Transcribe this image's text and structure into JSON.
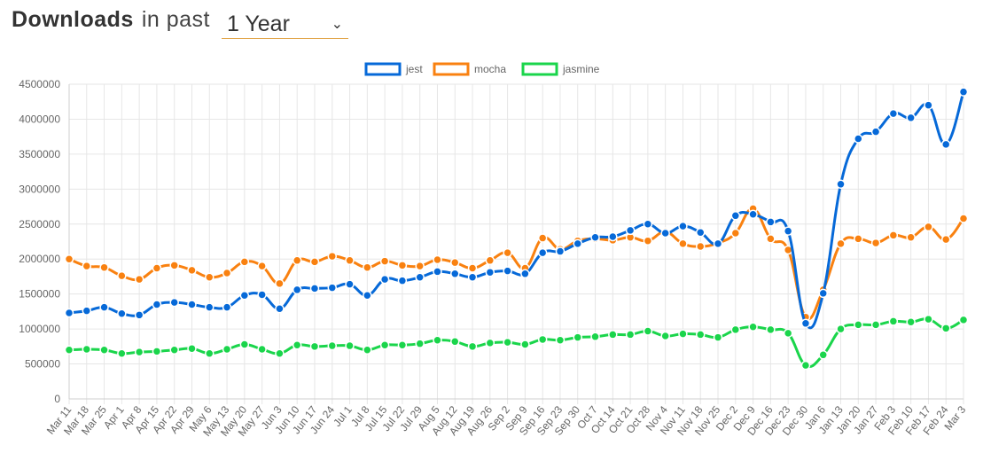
{
  "header": {
    "title_main": "Downloads",
    "title_sub": "in past",
    "range_selected": "1 Year",
    "caret": "⌄"
  },
  "colors": {
    "jest": "#0669d8",
    "mocha": "#f98110",
    "jasmine": "#1ad54b",
    "grid": "#e6e6e6",
    "axis_text": "#666666"
  },
  "chart_data": {
    "type": "line",
    "legend_position": "top-center",
    "grid": true,
    "ylim": [
      0,
      4500000
    ],
    "yticks": [
      "0",
      "500000",
      "1000000",
      "1500000",
      "2000000",
      "2500000",
      "3000000",
      "3500000",
      "4000000",
      "4500000"
    ],
    "ytick_values": [
      0,
      500000,
      1000000,
      1500000,
      2000000,
      2500000,
      3000000,
      3500000,
      4000000,
      4500000
    ],
    "categories": [
      "Mar 11",
      "Mar 18",
      "Mar 25",
      "Apr 1",
      "Apr 8",
      "Apr 15",
      "Apr 22",
      "Apr 29",
      "May 6",
      "May 13",
      "May 20",
      "May 27",
      "Jun 3",
      "Jun 10",
      "Jun 17",
      "Jun 24",
      "Jul 1",
      "Jul 8",
      "Jul 15",
      "Jul 22",
      "Jul 29",
      "Aug 5",
      "Aug 12",
      "Aug 19",
      "Aug 26",
      "Sep 2",
      "Sep 9",
      "Sep 16",
      "Sep 23",
      "Sep 30",
      "Oct 7",
      "Oct 14",
      "Oct 21",
      "Oct 28",
      "Nov 4",
      "Nov 11",
      "Nov 18",
      "Nov 25",
      "Dec 2",
      "Dec 9",
      "Dec 16",
      "Dec 23",
      "Dec 30",
      "Jan 6",
      "Jan 13",
      "Jan 20",
      "Jan 27",
      "Feb 3",
      "Feb 10",
      "Feb 17",
      "Feb 24",
      "Mar 3"
    ],
    "series": [
      {
        "name": "jest",
        "values": [
          1230000,
          1260000,
          1310000,
          1220000,
          1200000,
          1350000,
          1380000,
          1350000,
          1310000,
          1310000,
          1480000,
          1490000,
          1290000,
          1560000,
          1580000,
          1590000,
          1640000,
          1480000,
          1710000,
          1690000,
          1740000,
          1820000,
          1790000,
          1740000,
          1810000,
          1830000,
          1790000,
          2090000,
          2110000,
          2220000,
          2310000,
          2320000,
          2410000,
          2500000,
          2370000,
          2470000,
          2380000,
          2220000,
          2620000,
          2640000,
          2530000,
          2400000,
          1080000,
          1510000,
          3070000,
          3720000,
          3820000,
          4080000,
          4020000,
          4200000,
          3640000,
          4390000
        ]
      },
      {
        "name": "mocha",
        "values": [
          2000000,
          1900000,
          1880000,
          1760000,
          1710000,
          1870000,
          1910000,
          1840000,
          1740000,
          1800000,
          1960000,
          1900000,
          1650000,
          1980000,
          1960000,
          2040000,
          1980000,
          1880000,
          1970000,
          1910000,
          1900000,
          1990000,
          1950000,
          1870000,
          1980000,
          2090000,
          1870000,
          2300000,
          2140000,
          2260000,
          2290000,
          2270000,
          2310000,
          2260000,
          2390000,
          2220000,
          2180000,
          2230000,
          2370000,
          2720000,
          2290000,
          2130000,
          1170000,
          1560000,
          2220000,
          2290000,
          2230000,
          2340000,
          2310000,
          2460000,
          2280000,
          2580000
        ]
      },
      {
        "name": "jasmine",
        "values": [
          700000,
          710000,
          700000,
          650000,
          670000,
          680000,
          700000,
          720000,
          650000,
          710000,
          780000,
          710000,
          650000,
          770000,
          750000,
          760000,
          760000,
          700000,
          770000,
          770000,
          790000,
          840000,
          820000,
          750000,
          800000,
          810000,
          780000,
          850000,
          840000,
          880000,
          890000,
          920000,
          920000,
          970000,
          900000,
          930000,
          920000,
          880000,
          990000,
          1030000,
          990000,
          940000,
          480000,
          630000,
          1000000,
          1060000,
          1060000,
          1110000,
          1100000,
          1140000,
          1010000,
          1130000
        ]
      }
    ]
  }
}
